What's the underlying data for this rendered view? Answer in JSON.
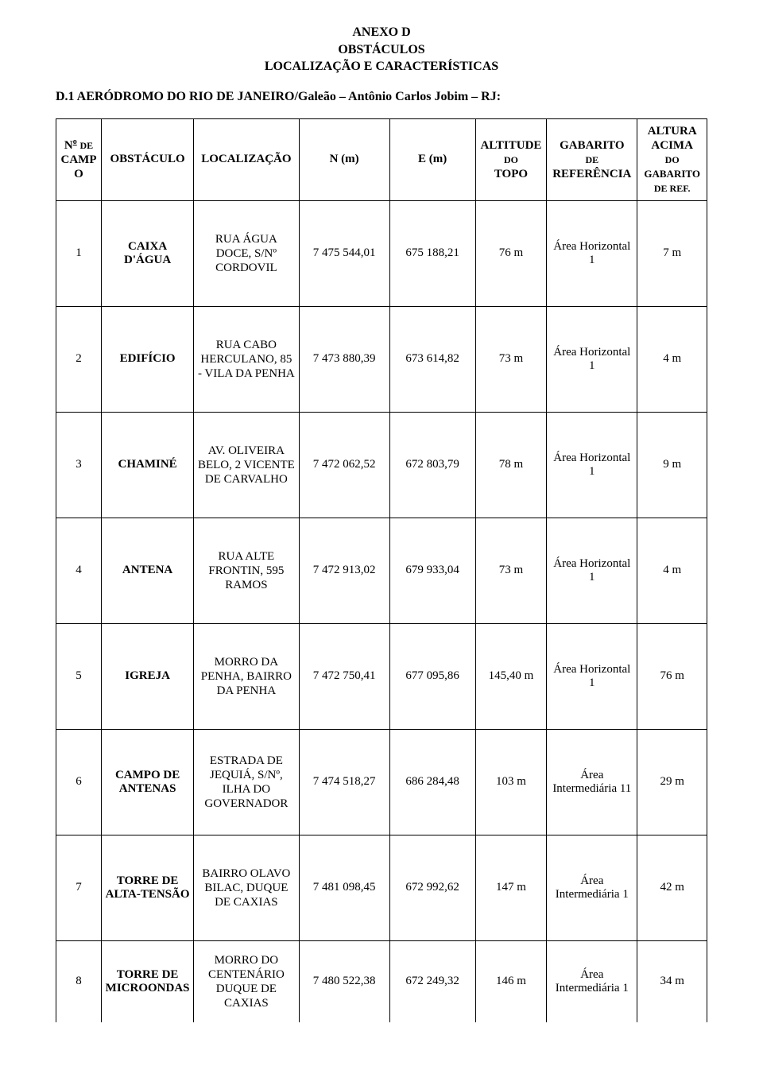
{
  "header": {
    "line1": "ANEXO D",
    "line2": "OBSTÁCULOS",
    "line3": "LOCALIZAÇÃO E CARACTERÍSTICAS"
  },
  "subheader": "D.1 AERÓDROMO DO RIO DE JANEIRO/Galeão – Antônio Carlos Jobim – RJ:",
  "columns": {
    "c1a": "N",
    "c1b": "DE",
    "c1c": "CAMPO",
    "c1sup": "o",
    "c2": "OBSTÁCULO",
    "c3": "LOCALIZAÇÃO",
    "c4": "N (m)",
    "c5": "E (m)",
    "c6a": "ALTITUDE",
    "c6b": "DO",
    "c6c": "TOPO",
    "c7a": "GABARITO",
    "c7b": "DE",
    "c7c": "REFERÊNCIA",
    "c8a": "ALTURA",
    "c8b": "ACIMA",
    "c8c": "DO",
    "c8d": "GABARITO",
    "c8e": "DE REF."
  },
  "rows": [
    {
      "n": "1",
      "obst": "CAIXA D'ÁGUA",
      "loc": "RUA ÁGUA DOCE, S/Nº CORDOVIL",
      "nm": "7 475 544,01",
      "em": "675 188,21",
      "alt": "76 m",
      "gab": "Área Horizontal 1",
      "acima": "7 m"
    },
    {
      "n": "2",
      "obst": "EDIFÍCIO",
      "loc": "RUA CABO HERCULANO, 85 - VILA DA PENHA",
      "nm": "7 473 880,39",
      "em": "673 614,82",
      "alt": "73 m",
      "gab": "Área Horizontal 1",
      "acima": "4 m"
    },
    {
      "n": "3",
      "obst": "CHAMINÉ",
      "loc": "AV. OLIVEIRA BELO, 2 VICENTE DE CARVALHO",
      "nm": "7 472 062,52",
      "em": "672 803,79",
      "alt": "78 m",
      "gab": "Área Horizontal 1",
      "acima": "9 m"
    },
    {
      "n": "4",
      "obst": "ANTENA",
      "loc": "RUA ALTE FRONTIN, 595 RAMOS",
      "nm": "7 472 913,02",
      "em": "679 933,04",
      "alt": "73 m",
      "gab": "Área Horizontal 1",
      "acima": "4 m"
    },
    {
      "n": "5",
      "obst": "IGREJA",
      "loc": "MORRO DA PENHA, BAIRRO DA PENHA",
      "nm": "7 472 750,41",
      "em": "677 095,86",
      "alt": "145,40 m",
      "gab": "Área Horizontal 1",
      "acima": "76 m"
    },
    {
      "n": "6",
      "obst": "CAMPO DE ANTENAS",
      "loc": "ESTRADA DE JEQUIÁ, S/Nº, ILHA DO GOVERNADOR",
      "nm": "7 474 518,27",
      "em": "686 284,48",
      "alt": "103 m",
      "gab": "Área Intermediária 11",
      "acima": "29 m"
    },
    {
      "n": "7",
      "obst": "TORRE DE ALTA-TENSÃO",
      "loc": "BAIRRO OLAVO BILAC, DUQUE DE CAXIAS",
      "nm": "7 481 098,45",
      "em": "672 992,62",
      "alt": "147 m",
      "gab": "Área Intermediária 1",
      "acima": "42 m"
    },
    {
      "n": "8",
      "obst": "TORRE DE MICROONDAS",
      "loc": "MORRO DO CENTENÁRIO DUQUE DE CAXIAS",
      "nm": "7 480 522,38",
      "em": "672 249,32",
      "alt": "146 m",
      "gab": "Área Intermediária 1",
      "acima": "34 m"
    }
  ]
}
